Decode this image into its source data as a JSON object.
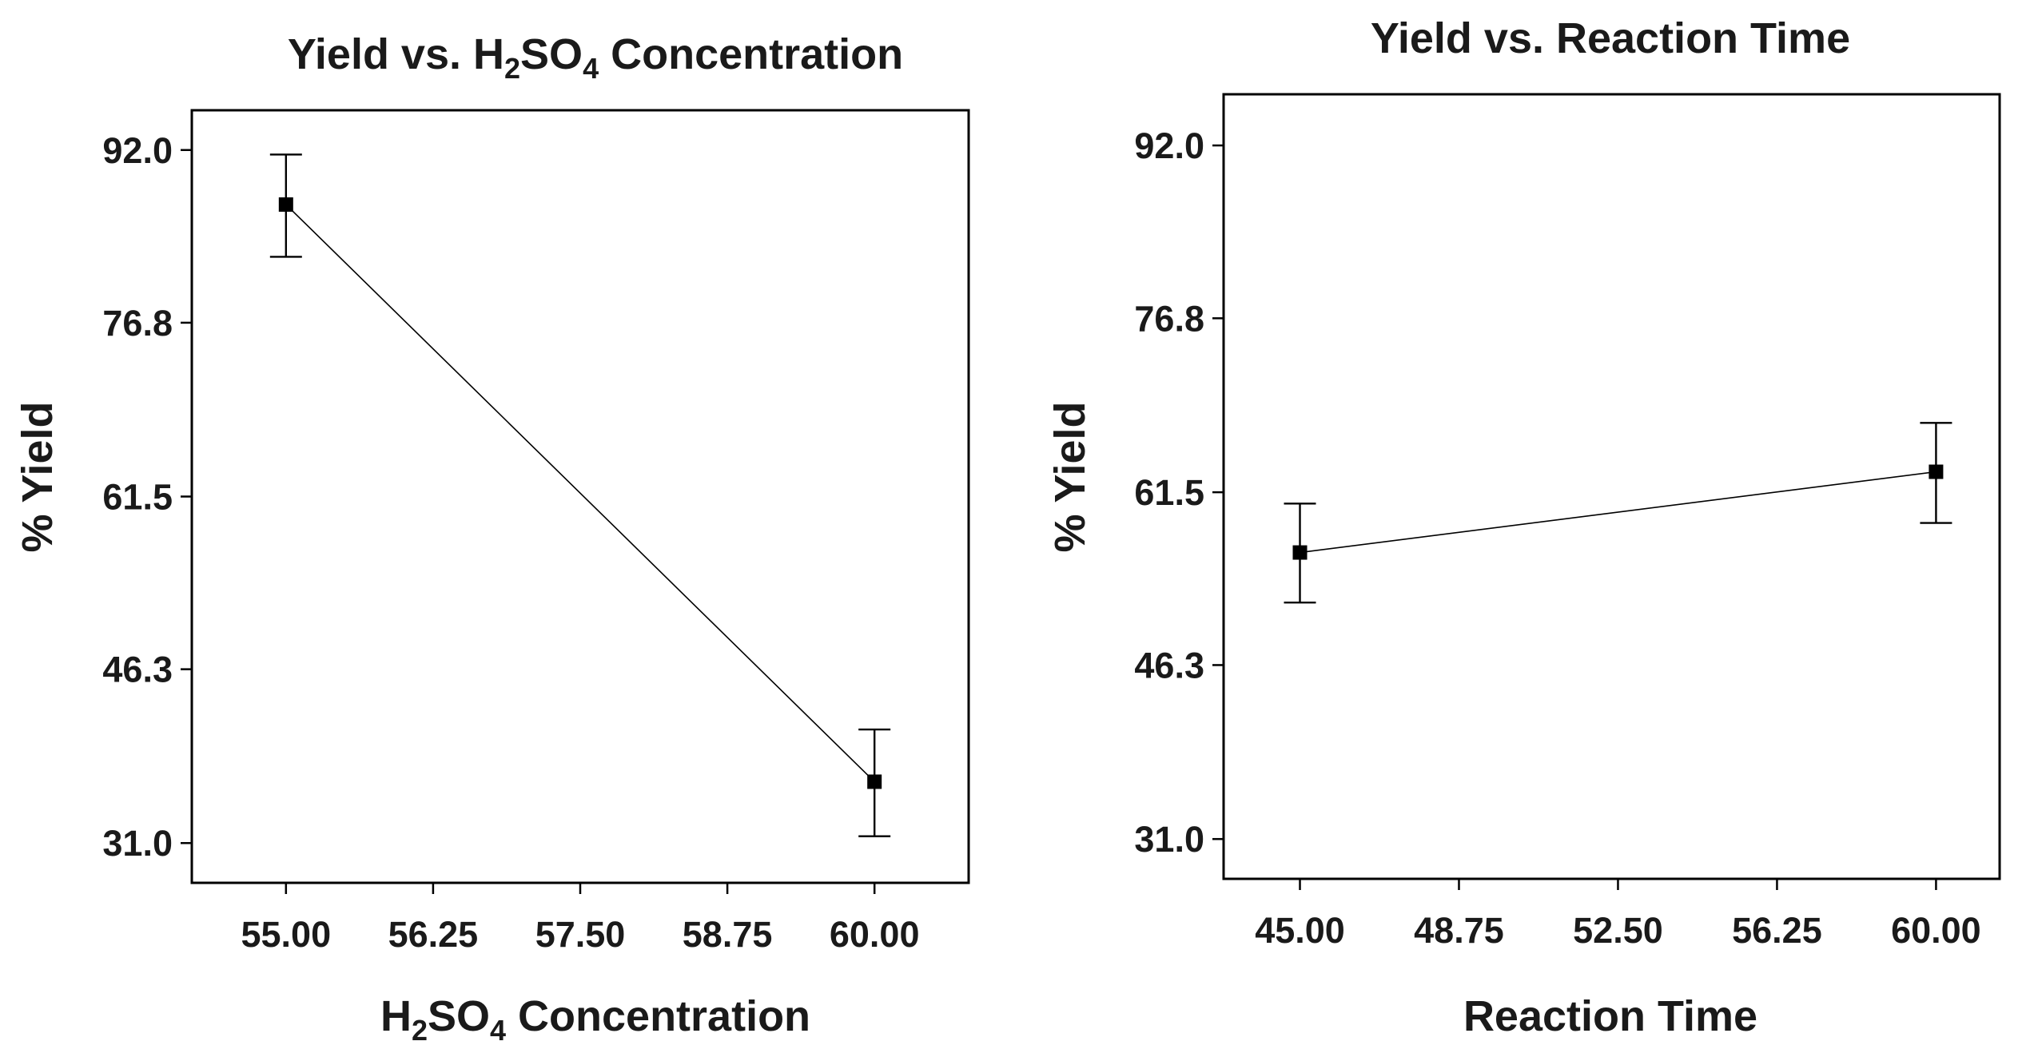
{
  "chart_data": [
    {
      "type": "line",
      "title_parts": [
        "Yield vs. H",
        "2",
        "SO",
        "4",
        " Concentration"
      ],
      "xlabel_parts": [
        "H",
        "2",
        "SO",
        "4",
        " Concentration"
      ],
      "ylabel": "% Yield",
      "x_ticks": [
        55.0,
        56.25,
        57.5,
        58.75,
        60.0
      ],
      "x_tick_labels": [
        "55.00",
        "56.25",
        "57.50",
        "58.75",
        "60.00"
      ],
      "y_ticks": [
        31.0,
        46.3,
        61.5,
        76.8,
        92.0
      ],
      "y_tick_labels": [
        "31.0",
        "46.3",
        "61.5",
        "76.8",
        "92.0"
      ],
      "xlim": [
        54.2,
        60.8
      ],
      "ylim": [
        27.5,
        95.5
      ],
      "series": [
        {
          "name": "% Yield",
          "x": [
            55.0,
            60.0
          ],
          "y": [
            87.2,
            36.4
          ],
          "err_low": [
            82.6,
            31.6
          ],
          "err_high": [
            91.6,
            41.0
          ]
        }
      ]
    },
    {
      "type": "line",
      "title_parts": [
        "Yield vs. Reaction Time"
      ],
      "xlabel_parts": [
        "Reaction Time"
      ],
      "ylabel": "% Yield",
      "x_ticks": [
        45.0,
        48.75,
        52.5,
        56.25,
        60.0
      ],
      "x_tick_labels": [
        "45.00",
        "48.75",
        "52.50",
        "56.25",
        "60.00"
      ],
      "y_ticks": [
        31.0,
        46.3,
        61.5,
        76.8,
        92.0
      ],
      "y_tick_labels": [
        "31.0",
        "46.3",
        "61.5",
        "76.8",
        "92.0"
      ],
      "xlim": [
        43.2,
        61.5
      ],
      "ylim": [
        27.5,
        96.5
      ],
      "series": [
        {
          "name": "% Yield",
          "x": [
            45.0,
            60.0
          ],
          "y": [
            56.2,
            63.3
          ],
          "err_low": [
            51.8,
            58.8
          ],
          "err_high": [
            60.5,
            67.6
          ]
        }
      ]
    }
  ]
}
